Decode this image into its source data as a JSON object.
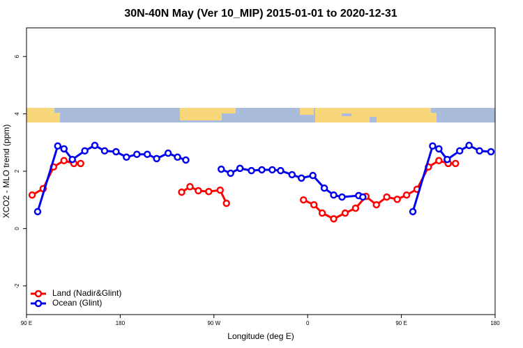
{
  "chart_data": {
    "type": "line",
    "title": "30N-40N May (Ver 10_MIP)   2015-01-01 to 2020-12-31",
    "x_label": "Longitude (deg E)",
    "y_label": "XCO2 - MLO trend (ppm)",
    "xlim": [
      90,
      540
    ],
    "xticks": [
      {
        "value": 90,
        "label": "90 E"
      },
      180,
      {
        "value": 270,
        "label": "90 W"
      },
      {
        "value": 360,
        "label": "0"
      },
      {
        "value": 450,
        "label": "90 E"
      },
      {
        "value": 540,
        "label": "180"
      }
    ],
    "ylim": [
      -3,
      7
    ],
    "yticks": [
      -2,
      0,
      2,
      4,
      6
    ],
    "legend": "bottom-left",
    "series": [
      {
        "name": "Land (Nadir&Glint)",
        "color": "#ff0000",
        "x": [
          95.4,
          106,
          116,
          126,
          135.5,
          142,
          null,
          239,
          247,
          255,
          265,
          276,
          282,
          null,
          356,
          366,
          374,
          385,
          396,
          406,
          416,
          426,
          436,
          446,
          455,
          465,
          476,
          486,
          495,
          502
        ],
        "values": [
          1.17,
          1.39,
          2.15,
          2.37,
          2.27,
          2.27,
          null,
          1.27,
          1.46,
          1.32,
          1.29,
          1.34,
          0.88,
          null,
          1.0,
          0.83,
          0.54,
          0.34,
          0.54,
          0.71,
          1.12,
          0.83,
          1.1,
          1.02,
          1.17,
          1.37,
          2.15,
          2.37,
          2.27,
          2.27
        ]
      },
      {
        "name": "Ocean (Glint)",
        "color": "#0000ee",
        "x": [
          100.7,
          120,
          126,
          134,
          146,
          155.6,
          165,
          176,
          186,
          196,
          206,
          215,
          226,
          235,
          243,
          null,
          277,
          286,
          295,
          306,
          316,
          326,
          334,
          345,
          354,
          365,
          376,
          385,
          393,
          409,
          413,
          null,
          461,
          480,
          486,
          494,
          506,
          515,
          525,
          536
        ],
        "values": [
          0.59,
          2.88,
          2.78,
          2.41,
          2.71,
          2.9,
          2.71,
          2.68,
          2.49,
          2.59,
          2.59,
          2.44,
          2.63,
          2.49,
          2.39,
          null,
          2.07,
          1.93,
          2.1,
          2.02,
          2.05,
          2.05,
          2.02,
          1.88,
          1.76,
          1.85,
          1.41,
          1.17,
          1.1,
          1.15,
          1.1,
          null,
          0.59,
          2.88,
          2.78,
          2.41,
          2.71,
          2.9,
          2.71,
          2.68
        ]
      }
    ]
  }
}
